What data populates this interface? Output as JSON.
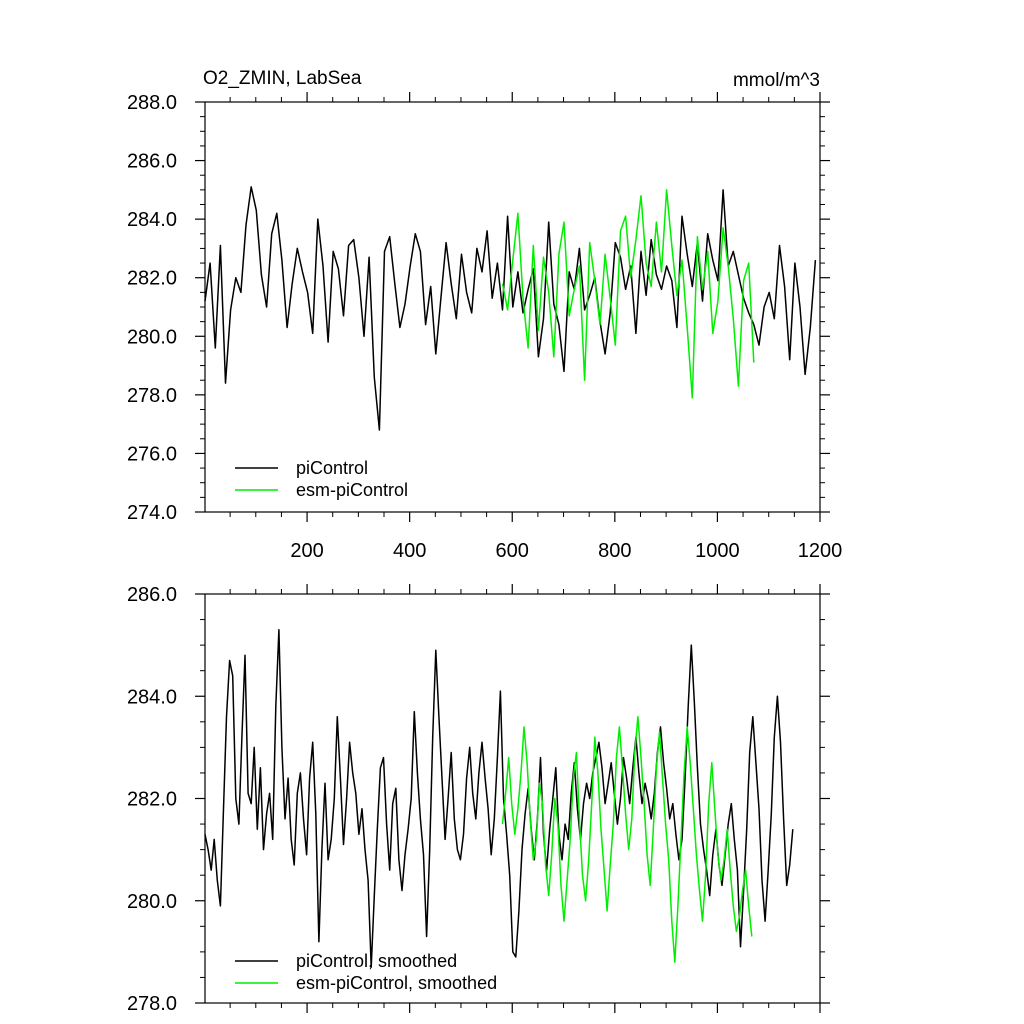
{
  "chart_data": [
    {
      "type": "line",
      "title_left": "O2_ZMIN, LabSea",
      "title_right": "mmol/m^3",
      "xlim": [
        1,
        1200
      ],
      "ylim": [
        274.0,
        288.0
      ],
      "xticks": [
        200,
        400,
        600,
        800,
        1000,
        1200
      ],
      "xtick_labels": [
        "200",
        "400",
        "600",
        "800",
        "1000",
        "1200"
      ],
      "yticks": [
        274.0,
        276.0,
        278.0,
        280.0,
        282.0,
        284.0,
        286.0,
        288.0
      ],
      "ytick_labels": [
        "274.0",
        "276.0",
        "278.0",
        "280.0",
        "282.0",
        "284.0",
        "286.0",
        "288.0"
      ],
      "series": [
        {
          "name": "piControl",
          "color": "#000000",
          "x_start": 1,
          "x_step": 10,
          "values": [
            281.2,
            282.5,
            279.6,
            283.1,
            278.4,
            280.9,
            282.0,
            281.5,
            283.8,
            285.1,
            284.3,
            282.1,
            281.0,
            283.5,
            284.2,
            282.6,
            280.3,
            281.8,
            283.0,
            282.2,
            281.5,
            280.1,
            284.0,
            282.4,
            279.8,
            282.9,
            282.3,
            280.7,
            283.1,
            283.3,
            282.0,
            280.0,
            282.7,
            278.6,
            276.8,
            282.9,
            283.4,
            281.8,
            280.3,
            281.1,
            282.4,
            283.5,
            282.9,
            280.4,
            281.7,
            279.4,
            281.3,
            283.2,
            281.8,
            280.6,
            282.8,
            281.5,
            280.8,
            283.0,
            282.2,
            283.6,
            281.3,
            282.5,
            280.9,
            284.1,
            281.0,
            282.2,
            280.8,
            281.6,
            282.3,
            279.3,
            280.6,
            283.9,
            281.1,
            280.4,
            278.8,
            282.2,
            281.6,
            283.0,
            280.9,
            281.4,
            282.0,
            280.5,
            279.4,
            280.8,
            283.2,
            282.7,
            281.6,
            282.4,
            280.1,
            282.9,
            281.4,
            283.3,
            282.1,
            281.6,
            282.4,
            281.9,
            280.3,
            284.1,
            282.8,
            281.7,
            283.2,
            281.2,
            283.5,
            282.6,
            281.9,
            285.0,
            282.4,
            282.9,
            282.1,
            281.3,
            280.8,
            280.4,
            279.7,
            281.0,
            281.5,
            280.6,
            283.1,
            281.7,
            279.2,
            282.5,
            281.0,
            278.7,
            280.3,
            282.6
          ]
        },
        {
          "name": "esm-piControl",
          "color": "#00ee00",
          "x_start": 581,
          "x_step": 10,
          "values": [
            281.8,
            280.9,
            282.6,
            284.2,
            281.3,
            279.6,
            283.1,
            280.2,
            282.7,
            281.5,
            279.3,
            282.8,
            283.9,
            280.7,
            281.6,
            282.4,
            278.5,
            283.2,
            281.9,
            280.4,
            282.8,
            281.3,
            279.7,
            283.6,
            284.1,
            282.0,
            283.3,
            284.8,
            282.5,
            281.7,
            283.9,
            282.2,
            285.0,
            283.1,
            281.4,
            282.6,
            280.3,
            277.9,
            283.4,
            281.6,
            282.9,
            280.1,
            281.2,
            283.7,
            282.4,
            280.6,
            278.3,
            281.9,
            282.5,
            279.1
          ]
        }
      ],
      "legend": [
        "piControl",
        "esm-piControl"
      ]
    },
    {
      "type": "line",
      "xlim": [
        1,
        1200
      ],
      "ylim": [
        278.0,
        286.0
      ],
      "xticks": [
        200,
        400,
        600,
        800,
        1000,
        1200
      ],
      "yticks": [
        278.0,
        280.0,
        282.0,
        284.0,
        286.0
      ],
      "ytick_labels": [
        "278.0",
        "280.0",
        "282.0",
        "284.0",
        "286.0"
      ],
      "series": [
        {
          "name": "piControl, smoothed",
          "color": "#000000",
          "x_start": 1,
          "x_step": 6,
          "values": [
            281.3,
            281.0,
            280.6,
            281.2,
            280.4,
            279.9,
            281.8,
            283.6,
            284.7,
            284.4,
            282.0,
            281.5,
            283.2,
            284.8,
            282.1,
            281.9,
            283.0,
            281.4,
            282.6,
            281.0,
            281.7,
            282.1,
            281.2,
            283.8,
            285.3,
            283.0,
            281.6,
            282.4,
            281.2,
            280.7,
            282.1,
            282.5,
            281.6,
            280.9,
            282.4,
            283.1,
            281.7,
            279.2,
            281.0,
            282.3,
            280.8,
            281.2,
            282.0,
            283.6,
            282.4,
            281.1,
            282.0,
            283.1,
            282.5,
            282.1,
            281.3,
            281.8,
            281.0,
            280.4,
            278.7,
            280.1,
            281.4,
            282.6,
            282.8,
            281.5,
            280.6,
            281.9,
            282.2,
            280.8,
            280.2,
            280.9,
            281.4,
            282.0,
            283.7,
            282.5,
            281.6,
            280.9,
            279.3,
            281.0,
            283.2,
            284.9,
            283.6,
            282.4,
            281.2,
            282.0,
            282.9,
            281.6,
            281.0,
            280.8,
            281.3,
            282.4,
            283.0,
            282.1,
            281.6,
            282.5,
            283.1,
            282.4,
            281.8,
            280.9,
            281.6,
            282.8,
            284.1,
            282.0,
            281.3,
            280.5,
            279.0,
            278.9,
            279.8,
            281.0,
            281.7,
            282.2,
            281.4,
            280.8,
            281.6,
            282.8,
            281.3,
            280.6,
            281.4,
            282.0,
            282.6,
            281.3,
            280.8,
            281.5,
            281.2,
            282.1,
            282.7,
            281.8,
            281.2,
            281.9,
            282.3,
            282.0,
            282.5,
            282.8,
            283.1,
            282.6,
            281.9,
            282.3,
            282.7,
            282.1,
            281.5,
            282.0,
            282.8,
            282.4,
            281.9,
            282.6,
            283.2,
            282.5,
            281.9,
            282.3,
            282.0,
            281.6,
            282.1,
            282.9,
            283.4,
            282.7,
            282.2,
            281.6,
            281.9,
            281.3,
            280.8,
            281.2,
            282.4,
            283.8,
            285.0,
            283.9,
            282.6,
            281.5,
            281.0,
            280.6,
            280.1,
            280.9,
            281.4,
            280.7,
            280.3,
            280.9,
            281.5,
            281.9,
            281.2,
            280.6,
            279.1,
            280.2,
            281.4,
            282.9,
            283.6,
            282.7,
            281.8,
            280.4,
            279.6,
            280.6,
            281.7,
            283.2,
            284.0,
            283.1,
            281.6,
            280.3,
            280.7,
            281.4
          ]
        },
        {
          "name": "esm-piControl, smoothed",
          "color": "#00ee00",
          "x_start": 581,
          "x_step": 6,
          "values": [
            281.5,
            282.1,
            282.8,
            281.9,
            281.3,
            281.8,
            282.5,
            283.4,
            282.7,
            281.6,
            280.8,
            281.2,
            282.3,
            281.9,
            280.7,
            280.1,
            280.9,
            282.0,
            281.5,
            280.3,
            279.6,
            280.4,
            281.2,
            282.4,
            282.9,
            281.6,
            280.5,
            280.0,
            280.8,
            281.9,
            283.2,
            282.5,
            281.4,
            280.6,
            279.8,
            280.7,
            281.5,
            282.8,
            283.4,
            282.6,
            281.7,
            281.0,
            281.6,
            282.9,
            283.6,
            282.8,
            281.9,
            280.9,
            280.3,
            281.4,
            282.6,
            283.3,
            282.4,
            281.5,
            280.8,
            279.6,
            278.8,
            279.9,
            281.2,
            282.5,
            283.4,
            282.7,
            281.8,
            280.9,
            280.2,
            279.6,
            280.5,
            281.9,
            282.7,
            281.8,
            280.9,
            280.4,
            280.8,
            281.4,
            280.6,
            279.9,
            279.4,
            279.7,
            280.2,
            280.6,
            279.9,
            279.3
          ]
        }
      ],
      "legend": [
        "piControl, smoothed",
        "esm-piControl, smoothed"
      ]
    }
  ]
}
